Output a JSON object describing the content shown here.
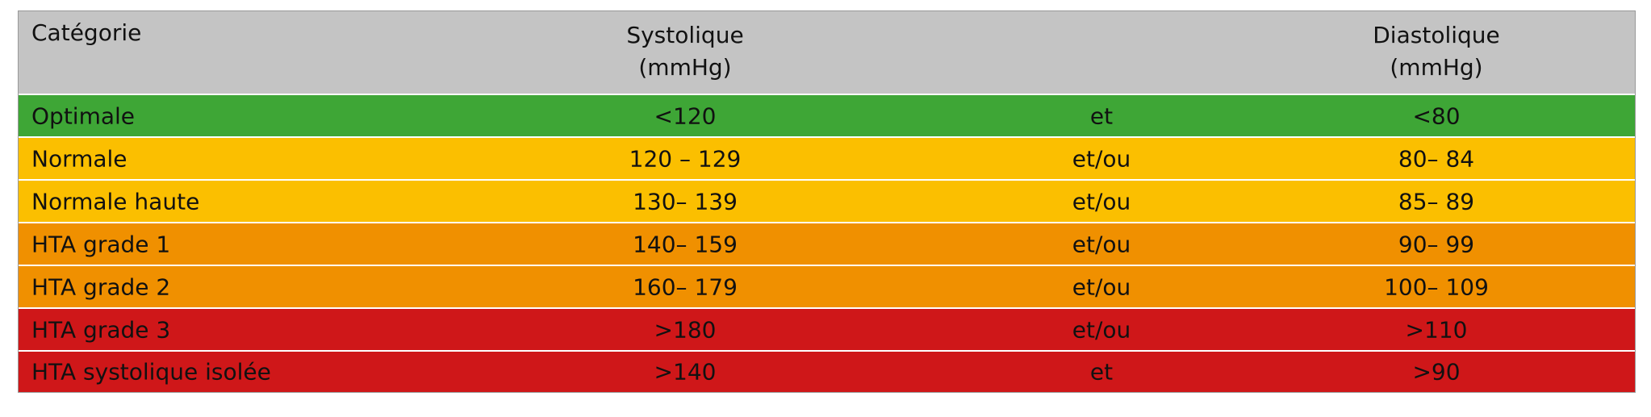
{
  "header": {
    "category": "Catégorie",
    "systolic": [
      "Systolique",
      "(mmHg)"
    ],
    "diastolic": [
      "Diastolique",
      "(mmHg)"
    ]
  },
  "table": {
    "rows": [
      [
        "Optimale",
        "<120",
        "et",
        "<80"
      ],
      [
        "Normale",
        "120 – 129",
        "et/ou",
        "80– 84"
      ],
      [
        "Normale haute",
        "130– 139",
        "et/ou",
        "85– 89"
      ],
      [
        "HTA grade 1",
        "140– 159",
        "et/ou",
        "90– 99"
      ],
      [
        "HTA grade 2",
        "160– 179",
        "et/ou",
        "100– 109"
      ],
      [
        "HTA grade 3",
        ">180",
        "et/ou",
        ">110"
      ],
      [
        "HTA systolique isolée",
        ">140",
        "et",
        ">90"
      ]
    ]
  }
}
